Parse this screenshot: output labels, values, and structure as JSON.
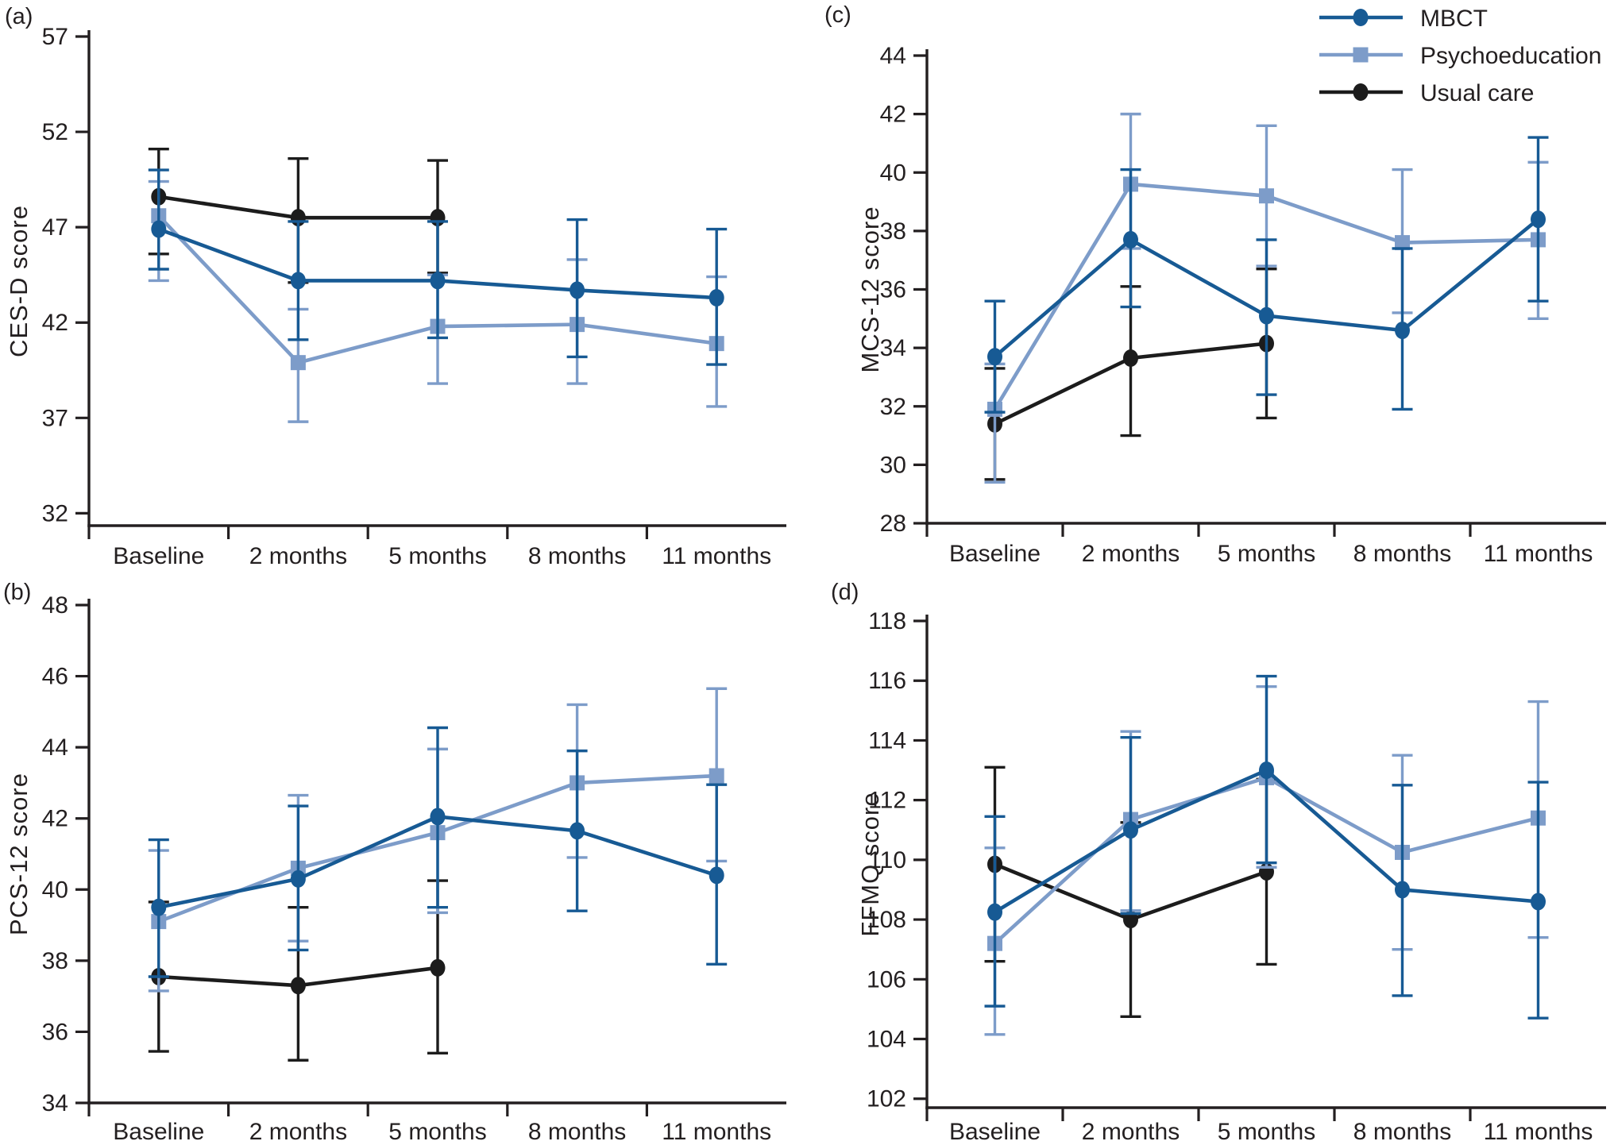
{
  "styles": {
    "colors": {
      "mbct": "#175a94",
      "psychoeducation": "#7d9cc9",
      "usual_care": "#1c1c1c",
      "axis": "#231f20",
      "text": "#231f20",
      "background": "#ffffff"
    }
  },
  "legend": {
    "position": "top-right-of-panel-c",
    "items": [
      {
        "label": "MBCT",
        "color_key": "mbct",
        "marker": "circle"
      },
      {
        "label": "Psychoeducation",
        "color_key": "psychoeducation",
        "marker": "square"
      },
      {
        "label": "Usual care",
        "color_key": "usual_care",
        "marker": "circle"
      }
    ]
  },
  "chart_data": [
    {
      "id": "a",
      "type": "line",
      "panel_label": "(a)",
      "ylabel": "CES-D score",
      "categories": [
        "Baseline",
        "2 months",
        "5 months",
        "8 months",
        "11 months"
      ],
      "yticks": [
        32,
        37,
        42,
        47,
        52,
        57
      ],
      "ylim": [
        31.35,
        57
      ],
      "grid": false,
      "series": [
        {
          "name": "Usual care",
          "color_key": "usual_care",
          "marker": "circle",
          "values": [
            48.6,
            47.5,
            47.5
          ],
          "err_lo": [
            45.6,
            44.1,
            44.6
          ],
          "err_hi": [
            51.1,
            50.6,
            50.5
          ]
        },
        {
          "name": "Psychoeducation",
          "color_key": "psychoeducation",
          "marker": "square",
          "values": [
            47.6,
            39.9,
            41.8,
            41.9,
            40.9
          ],
          "err_lo": [
            44.2,
            36.8,
            38.8,
            38.8,
            37.6
          ],
          "err_hi": [
            49.4,
            42.7,
            44.5,
            45.3,
            44.4
          ]
        },
        {
          "name": "MBCT",
          "color_key": "mbct",
          "marker": "circle",
          "values": [
            46.9,
            44.2,
            44.2,
            43.7,
            43.3
          ],
          "err_lo": [
            44.8,
            41.1,
            41.2,
            40.2,
            39.8
          ],
          "err_hi": [
            50.0,
            47.3,
            47.3,
            47.4,
            46.9
          ]
        }
      ]
    },
    {
      "id": "b",
      "type": "line",
      "panel_label": "(b)",
      "ylabel": "PCS-12 score",
      "categories": [
        "Baseline",
        "2 months",
        "5 months",
        "8 months",
        "11 months"
      ],
      "yticks": [
        34,
        36,
        38,
        40,
        42,
        44,
        46,
        48
      ],
      "ylim": [
        34,
        48
      ],
      "grid": false,
      "series": [
        {
          "name": "Usual care",
          "color_key": "usual_care",
          "marker": "circle",
          "values": [
            37.55,
            37.3,
            37.8
          ],
          "err_lo": [
            35.45,
            35.2,
            35.4
          ],
          "err_hi": [
            39.65,
            39.5,
            40.25
          ]
        },
        {
          "name": "Psychoeducation",
          "color_key": "psychoeducation",
          "marker": "square",
          "values": [
            39.1,
            40.6,
            41.6,
            43.0,
            43.2
          ],
          "err_lo": [
            37.15,
            38.55,
            39.35,
            40.9,
            40.8
          ],
          "err_hi": [
            41.1,
            42.65,
            43.95,
            45.2,
            45.65
          ]
        },
        {
          "name": "MBCT",
          "color_key": "mbct",
          "marker": "circle",
          "values": [
            39.5,
            40.3,
            42.05,
            41.65,
            40.4
          ],
          "err_lo": [
            37.55,
            38.3,
            39.5,
            39.4,
            37.9
          ],
          "err_hi": [
            41.4,
            42.35,
            44.55,
            43.9,
            42.95
          ]
        }
      ]
    },
    {
      "id": "c",
      "type": "line",
      "panel_label": "(c)",
      "ylabel": "MCS-12 score",
      "categories": [
        "Baseline",
        "2 months",
        "5 months",
        "8 months",
        "11 months"
      ],
      "yticks": [
        28,
        30,
        32,
        34,
        36,
        38,
        40,
        42,
        44
      ],
      "ylim": [
        28,
        44
      ],
      "grid": false,
      "show_legend": true,
      "series": [
        {
          "name": "Usual care",
          "color_key": "usual_care",
          "marker": "circle",
          "values": [
            31.4,
            33.65,
            34.15
          ],
          "err_lo": [
            29.5,
            31.0,
            31.6
          ],
          "err_hi": [
            33.3,
            36.1,
            36.7
          ]
        },
        {
          "name": "Psychoeducation",
          "color_key": "psychoeducation",
          "marker": "square",
          "values": [
            31.9,
            39.6,
            39.2,
            37.6,
            37.7
          ],
          "err_lo": [
            29.4,
            37.4,
            36.8,
            35.2,
            35.0
          ],
          "err_hi": [
            33.45,
            42.0,
            41.6,
            40.1,
            40.35
          ]
        },
        {
          "name": "MBCT",
          "color_key": "mbct",
          "marker": "circle",
          "values": [
            33.7,
            37.7,
            35.1,
            34.6,
            38.4
          ],
          "err_lo": [
            31.8,
            35.4,
            32.4,
            31.9,
            35.6
          ],
          "err_hi": [
            35.6,
            40.1,
            37.7,
            37.4,
            41.2
          ]
        }
      ]
    },
    {
      "id": "d",
      "type": "line",
      "panel_label": "(d)",
      "ylabel": "FFMQ score",
      "categories": [
        "Baseline",
        "2 months",
        "5 months",
        "8 months",
        "11 months"
      ],
      "yticks": [
        102,
        104,
        106,
        108,
        110,
        112,
        114,
        116,
        118
      ],
      "ylim": [
        101.7,
        118
      ],
      "grid": false,
      "series": [
        {
          "name": "Usual care",
          "color_key": "usual_care",
          "marker": "circle",
          "values": [
            109.85,
            108.0,
            109.6
          ],
          "err_lo": [
            106.6,
            104.75,
            106.5
          ],
          "err_hi": [
            113.1,
            111.25,
            112.7
          ]
        },
        {
          "name": "Psychoeducation",
          "color_key": "psychoeducation",
          "marker": "square",
          "values": [
            107.2,
            111.35,
            112.75,
            110.25,
            111.4
          ],
          "err_lo": [
            104.15,
            108.3,
            109.75,
            107.0,
            107.4
          ],
          "err_hi": [
            110.4,
            114.3,
            115.8,
            113.5,
            115.3
          ]
        },
        {
          "name": "MBCT",
          "color_key": "mbct",
          "marker": "circle",
          "values": [
            108.25,
            111.0,
            113.0,
            109.0,
            108.6
          ],
          "err_lo": [
            105.1,
            108.2,
            109.9,
            105.45,
            104.7
          ],
          "err_hi": [
            111.45,
            114.1,
            116.15,
            112.5,
            112.6
          ]
        }
      ]
    }
  ]
}
